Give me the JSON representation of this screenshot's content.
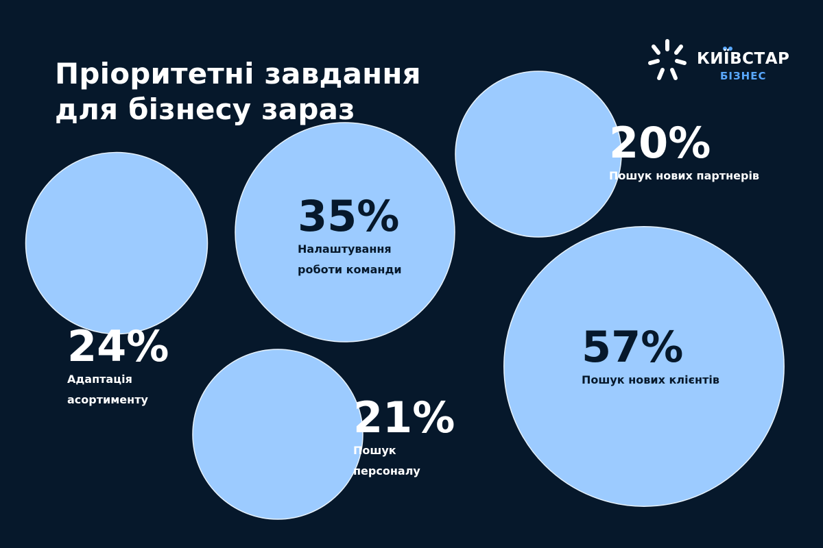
{
  "title_lines": [
    "Пріоритетні завдання",
    "для бізнесу зараз"
  ],
  "logo": {
    "name": "КИЇВСТАР",
    "sub": "БІЗНЕС",
    "icon": "kyivstar-star-icon"
  },
  "colors": {
    "background": "#06182b",
    "bubble": "#9ccbff",
    "bubble_stroke": "#e8f3ff",
    "text_light": "#ffffff",
    "text_dark": "#06182b",
    "accent": "#59a8ff"
  },
  "chart_data": {
    "type": "bubble",
    "items": [
      {
        "value": 24,
        "value_label": "24%",
        "label_lines": [
          "Адаптація",
          "асортименту"
        ]
      },
      {
        "value": 35,
        "value_label": "35%",
        "label_lines": [
          "Налаштування",
          "роботи команди"
        ]
      },
      {
        "value": 20,
        "value_label": "20%",
        "label_lines": [
          "Пошук нових партнерів"
        ]
      },
      {
        "value": 21,
        "value_label": "21%",
        "label_lines": [
          "Пошук",
          "персоналу"
        ]
      },
      {
        "value": 57,
        "value_label": "57%",
        "label_lines": [
          "Пошук нових клієнтів"
        ]
      }
    ]
  }
}
